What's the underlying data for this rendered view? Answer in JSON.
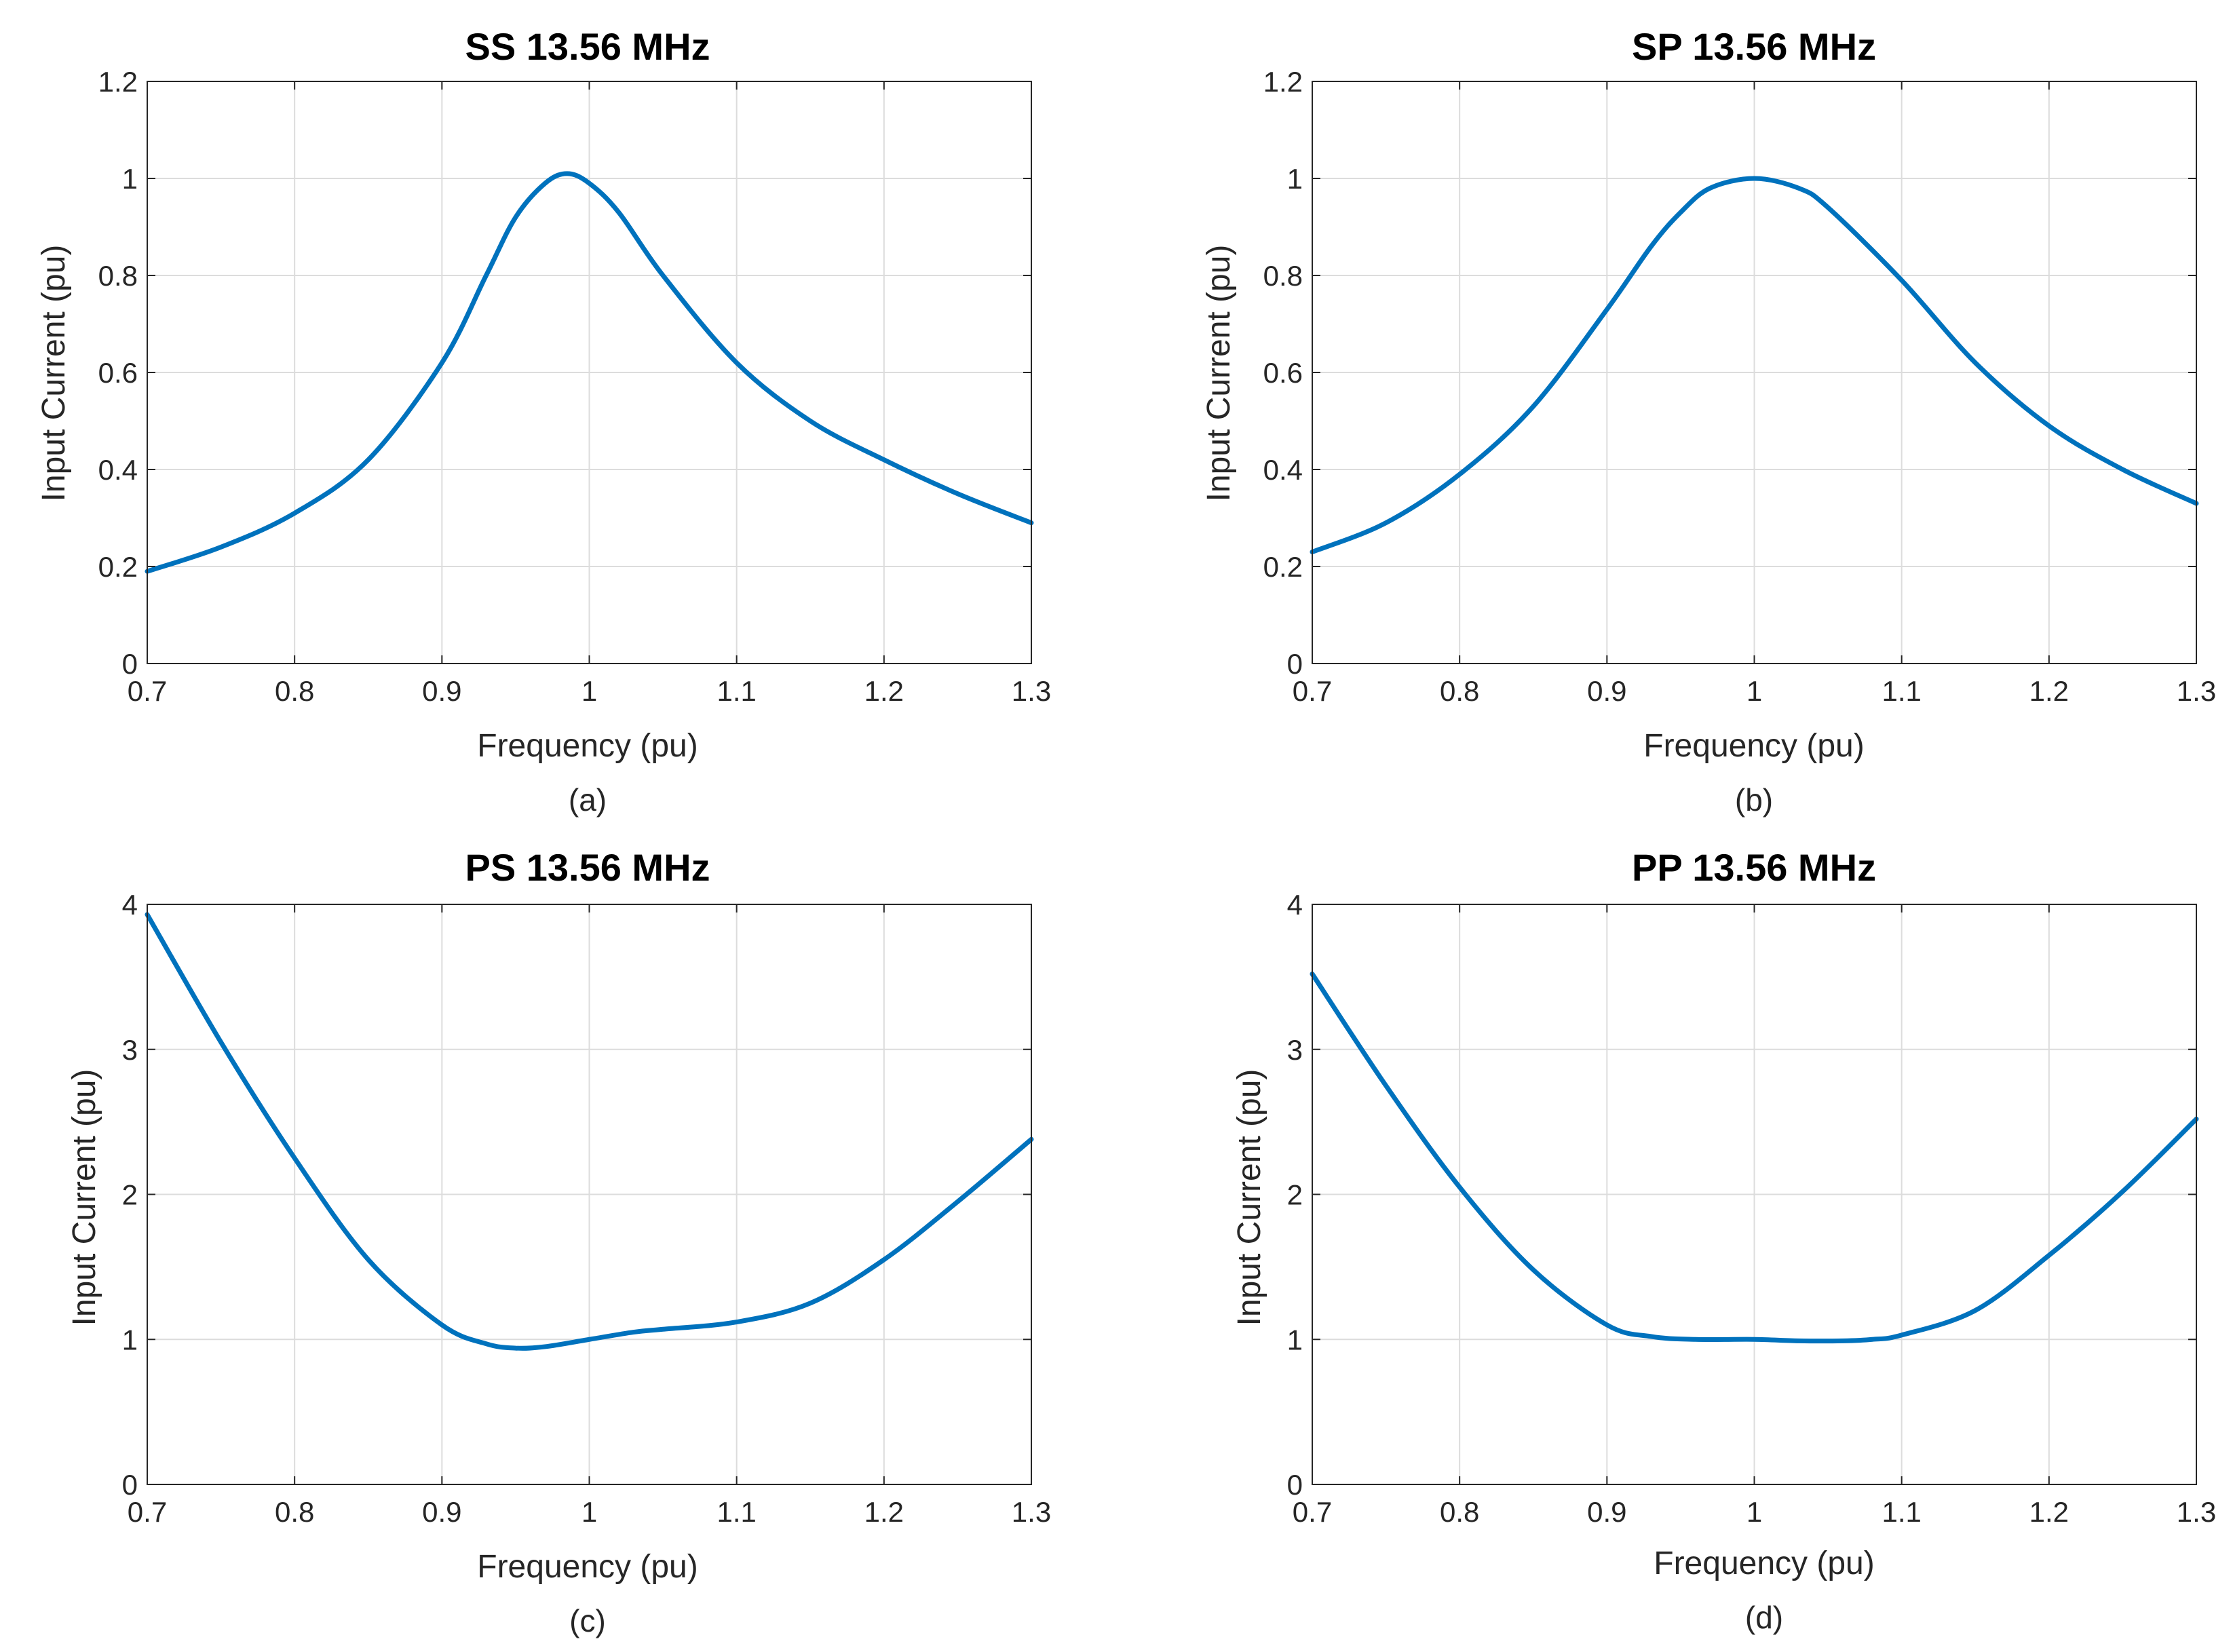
{
  "figure": {
    "colors": {
      "line": "#0072BD",
      "grid": "#DCDCDC",
      "axis": "#262626",
      "background": "#FFFFFF"
    }
  },
  "chart_data": [
    {
      "type": "line",
      "title": "SS 13.56 MHz",
      "xlabel": "Frequency (pu)",
      "ylabel": "Input Current (pu)",
      "caption": "(a)",
      "xlim": [
        0.7,
        1.3
      ],
      "ylim": [
        0,
        1.2
      ],
      "xticks": [
        "0.7",
        "0.8",
        "0.9",
        "1",
        "1.1",
        "1.2",
        "1.3"
      ],
      "yticks": [
        "0",
        "0.2",
        "0.4",
        "0.6",
        "0.8",
        "1",
        "1.2"
      ],
      "grid": true,
      "series": [
        {
          "name": "Input Current",
          "x": [
            0.7,
            0.75,
            0.8,
            0.85,
            0.9,
            0.93,
            0.95,
            0.97,
            0.985,
            1.0,
            1.02,
            1.05,
            1.1,
            1.15,
            1.2,
            1.25,
            1.3
          ],
          "y": [
            0.19,
            0.24,
            0.31,
            0.42,
            0.62,
            0.8,
            0.92,
            0.99,
            1.01,
            0.99,
            0.93,
            0.8,
            0.62,
            0.5,
            0.42,
            0.35,
            0.29
          ]
        }
      ]
    },
    {
      "type": "line",
      "title": "SP 13.56 MHz",
      "xlabel": "Frequency (pu)",
      "ylabel": "Input Current (pu)",
      "caption": "(b)",
      "xlim": [
        0.7,
        1.3
      ],
      "ylim": [
        0,
        1.2
      ],
      "xticks": [
        "0.7",
        "0.8",
        "0.9",
        "1",
        "1.1",
        "1.2",
        "1.3"
      ],
      "yticks": [
        "0",
        "0.2",
        "0.4",
        "0.6",
        "0.8",
        "1",
        "1.2"
      ],
      "grid": true,
      "series": [
        {
          "name": "Input Current",
          "x": [
            0.7,
            0.75,
            0.8,
            0.85,
            0.9,
            0.93,
            0.95,
            0.97,
            1.0,
            1.03,
            1.05,
            1.1,
            1.15,
            1.2,
            1.25,
            1.3
          ],
          "y": [
            0.23,
            0.29,
            0.39,
            0.53,
            0.73,
            0.86,
            0.93,
            0.98,
            1.0,
            0.98,
            0.94,
            0.79,
            0.62,
            0.49,
            0.4,
            0.33
          ]
        }
      ]
    },
    {
      "type": "line",
      "title": "PS 13.56 MHz",
      "xlabel": "Frequency (pu)",
      "ylabel": "Input Current (pu)",
      "caption": "(c)",
      "xlim": [
        0.7,
        1.3
      ],
      "ylim": [
        0,
        4
      ],
      "xticks": [
        "0.7",
        "0.8",
        "0.9",
        "1",
        "1.1",
        "1.2",
        "1.3"
      ],
      "yticks": [
        "0",
        "1",
        "2",
        "3",
        "4"
      ],
      "grid": true,
      "series": [
        {
          "name": "Input Current",
          "x": [
            0.7,
            0.75,
            0.8,
            0.85,
            0.9,
            0.93,
            0.95,
            0.97,
            1.0,
            1.03,
            1.05,
            1.1,
            1.15,
            1.2,
            1.25,
            1.3
          ],
          "y": [
            3.93,
            3.05,
            2.25,
            1.55,
            1.1,
            0.97,
            0.94,
            0.95,
            1.0,
            1.05,
            1.07,
            1.12,
            1.25,
            1.55,
            1.95,
            2.38
          ]
        }
      ]
    },
    {
      "type": "line",
      "title": "PP 13.56 MHz",
      "xlabel": "Frequency (pu)",
      "ylabel": "Input Current (pu)",
      "caption": "(d)",
      "xlim": [
        0.7,
        1.3
      ],
      "ylim": [
        0,
        4
      ],
      "xticks": [
        "0.7",
        "0.8",
        "0.9",
        "1",
        "1.1",
        "1.2",
        "1.3"
      ],
      "yticks": [
        "0",
        "1",
        "2",
        "3",
        "4"
      ],
      "grid": true,
      "series": [
        {
          "name": "Input Current",
          "x": [
            0.7,
            0.75,
            0.8,
            0.85,
            0.9,
            0.93,
            0.96,
            1.0,
            1.03,
            1.06,
            1.08,
            1.1,
            1.15,
            1.2,
            1.25,
            1.3
          ],
          "y": [
            3.52,
            2.75,
            2.05,
            1.48,
            1.1,
            1.02,
            1.0,
            1.0,
            0.99,
            0.99,
            1.0,
            1.03,
            1.2,
            1.58,
            2.02,
            2.52
          ]
        }
      ]
    }
  ]
}
